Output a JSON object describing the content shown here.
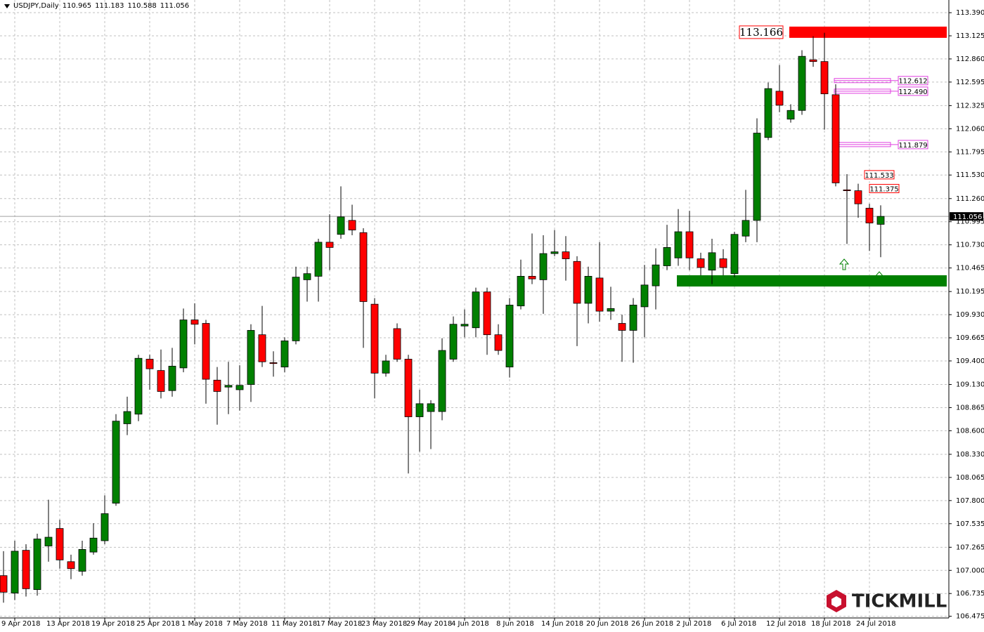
{
  "chart_data": {
    "type": "candlestick",
    "symbol": "USDJPY,Daily",
    "logo": "TICKMILL",
    "up_color": "#008000",
    "down_color": "#ff0000",
    "grid": true,
    "categories": [
      null,
      "9 Apr 2018",
      null,
      null,
      null,
      "13 Apr 2018",
      null,
      null,
      null,
      "19 Apr 2018",
      null,
      null,
      null,
      "25 Apr 2018",
      null,
      null,
      null,
      "1 May 2018",
      null,
      null,
      null,
      "7 May 2018",
      null,
      null,
      null,
      "11 May 2018",
      null,
      null,
      null,
      "17 May 2018",
      null,
      null,
      null,
      "23 May 2018",
      null,
      null,
      null,
      "29 May 2018",
      null,
      null,
      null,
      "4 Jun 2018",
      null,
      null,
      null,
      "8 Jun 2018",
      null,
      null,
      null,
      "14 Jun 2018",
      null,
      null,
      null,
      "20 Jun 2018",
      null,
      null,
      null,
      "26 Jun 2018",
      null,
      null,
      null,
      "2 Jul 2018",
      null,
      null,
      null,
      "6 Jul 2018",
      null,
      null,
      null,
      "12 Jul 2018",
      null,
      null,
      null,
      "18 Jul 2018",
      null,
      null,
      null,
      "24 Jul 2018",
      null
    ],
    "open": [
      106.94,
      106.74,
      107.23,
      106.78,
      107.28,
      107.48,
      107.1,
      106.99,
      107.21,
      107.34,
      107.77,
      108.68,
      108.79,
      109.42,
      109.29,
      109.06,
      109.32,
      109.87,
      109.83,
      109.18,
      109.1,
      109.07,
      109.13,
      109.7,
      109.38,
      109.33,
      109.63,
      110.33,
      110.37,
      110.76,
      110.85,
      111.01,
      110.87,
      110.05,
      109.26,
      109.77,
      109.42,
      108.76,
      108.82,
      108.82,
      109.42,
      109.8,
      109.78,
      110.19,
      109.7,
      109.33,
      110.03,
      110.37,
      110.33,
      110.63,
      110.65,
      110.54,
      110.06,
      110.35,
      109.97,
      109.83,
      109.75,
      110.02,
      110.26,
      110.49,
      110.58,
      110.88,
      110.57,
      110.44,
      110.57,
      110.4,
      110.83,
      111.01,
      111.96,
      112.49,
      112.17,
      112.27,
      112.85,
      112.83,
      112.45,
      111.36,
      111.35,
      111.15,
      110.965
    ],
    "high": [
      107.22,
      107.34,
      107.3,
      107.42,
      107.81,
      107.58,
      107.18,
      107.34,
      107.54,
      107.86,
      108.79,
      108.99,
      109.47,
      109.47,
      109.53,
      109.55,
      110.0,
      110.06,
      109.87,
      109.33,
      109.39,
      109.35,
      109.82,
      110.03,
      109.51,
      109.67,
      110.48,
      110.48,
      110.8,
      111.08,
      111.4,
      111.19,
      110.92,
      110.12,
      109.47,
      109.83,
      109.47,
      109.07,
      108.95,
      109.66,
      109.91,
      109.99,
      110.24,
      110.24,
      109.82,
      110.12,
      110.56,
      110.86,
      110.84,
      110.9,
      110.83,
      110.6,
      110.48,
      110.76,
      110.25,
      109.93,
      110.12,
      110.5,
      110.69,
      110.96,
      111.14,
      111.12,
      110.64,
      110.8,
      110.68,
      110.88,
      111.36,
      112.18,
      112.59,
      112.79,
      112.34,
      112.96,
      113.12,
      113.16,
      112.57,
      111.54,
      111.43,
      111.2,
      111.183
    ],
    "low": [
      106.63,
      106.66,
      106.7,
      106.71,
      107.1,
      107.02,
      106.9,
      106.94,
      107.18,
      107.3,
      107.74,
      108.55,
      108.71,
      109.07,
      108.97,
      108.99,
      109.27,
      109.59,
      108.91,
      108.67,
      108.79,
      108.83,
      108.93,
      109.33,
      109.22,
      109.27,
      109.59,
      110.08,
      110.08,
      110.44,
      110.8,
      110.84,
      109.55,
      108.97,
      109.22,
      109.39,
      108.11,
      108.36,
      108.39,
      108.72,
      109.39,
      109.67,
      109.67,
      109.47,
      109.47,
      109.21,
      109.99,
      110.28,
      109.94,
      110.6,
      110.32,
      109.57,
      109.83,
      109.85,
      109.87,
      109.39,
      109.38,
      109.67,
      109.99,
      110.44,
      110.49,
      110.44,
      110.38,
      110.28,
      110.38,
      110.36,
      110.76,
      110.76,
      111.93,
      112.25,
      112.13,
      112.22,
      112.77,
      112.05,
      111.4,
      110.74,
      111.04,
      110.66,
      110.588
    ],
    "close": [
      106.75,
      107.22,
      106.79,
      107.36,
      107.38,
      107.12,
      107.02,
      107.24,
      107.37,
      107.65,
      108.71,
      108.82,
      109.43,
      109.31,
      109.05,
      109.34,
      109.87,
      109.82,
      109.19,
      109.05,
      109.12,
      109.12,
      109.75,
      109.39,
      109.37,
      109.63,
      110.36,
      110.4,
      110.76,
      110.7,
      111.05,
      110.9,
      110.08,
      109.26,
      109.4,
      109.42,
      108.76,
      108.91,
      108.91,
      109.52,
      109.82,
      109.82,
      110.19,
      109.7,
      109.52,
      110.04,
      110.37,
      110.34,
      110.63,
      110.65,
      110.57,
      110.06,
      110.37,
      109.97,
      110.0,
      109.75,
      110.04,
      110.27,
      110.5,
      110.7,
      110.88,
      110.58,
      110.47,
      110.64,
      110.47,
      110.85,
      111.01,
      112.01,
      112.52,
      112.33,
      112.27,
      112.89,
      112.83,
      112.46,
      111.44,
      111.35,
      111.2,
      110.98,
      111.056
    ],
    "ylim": [
      106.455,
      113.495
    ],
    "yticks": [
      {
        "value": 113.39,
        "label": "113.390"
      },
      113.125,
      {
        "value": 112.86,
        "label": "112.860"
      },
      112.595,
      112.325,
      {
        "value": 112.06,
        "label": "112.060"
      },
      111.795,
      {
        "value": 111.53,
        "label": "111.530"
      },
      {
        "value": 111.26,
        "label": "111.260"
      },
      110.995,
      {
        "value": 110.73,
        "label": "110.730"
      },
      110.465,
      110.195,
      {
        "value": 109.93,
        "label": "109.930"
      },
      109.665,
      {
        "value": 109.4,
        "label": "109.400"
      },
      {
        "value": 109.13,
        "label": "109.130"
      },
      108.865,
      {
        "value": 108.6,
        "label": "108.600"
      },
      {
        "value": 108.33,
        "label": "108.330"
      },
      108.065,
      {
        "value": 107.8,
        "label": "107.800"
      },
      107.535,
      107.265,
      {
        "value": 107,
        "label": "107.000"
      },
      106.735,
      106.475
    ],
    "zones": [
      {
        "value": 113.166,
        "color": "#ff0000",
        "labeled": true
      },
      {
        "value": 110.317,
        "color": "#008000",
        "labeled": false
      }
    ],
    "levels": [
      {
        "value": 112.612,
        "color": "#e040e0"
      },
      {
        "value": 112.49,
        "label": "112.490",
        "color": "#e040e0"
      },
      {
        "value": 111.879,
        "color": "#e040e0"
      },
      {
        "value": 111.533,
        "color": "#ff0000"
      },
      {
        "value": 111.375,
        "color": "#ff0000"
      }
    ]
  }
}
